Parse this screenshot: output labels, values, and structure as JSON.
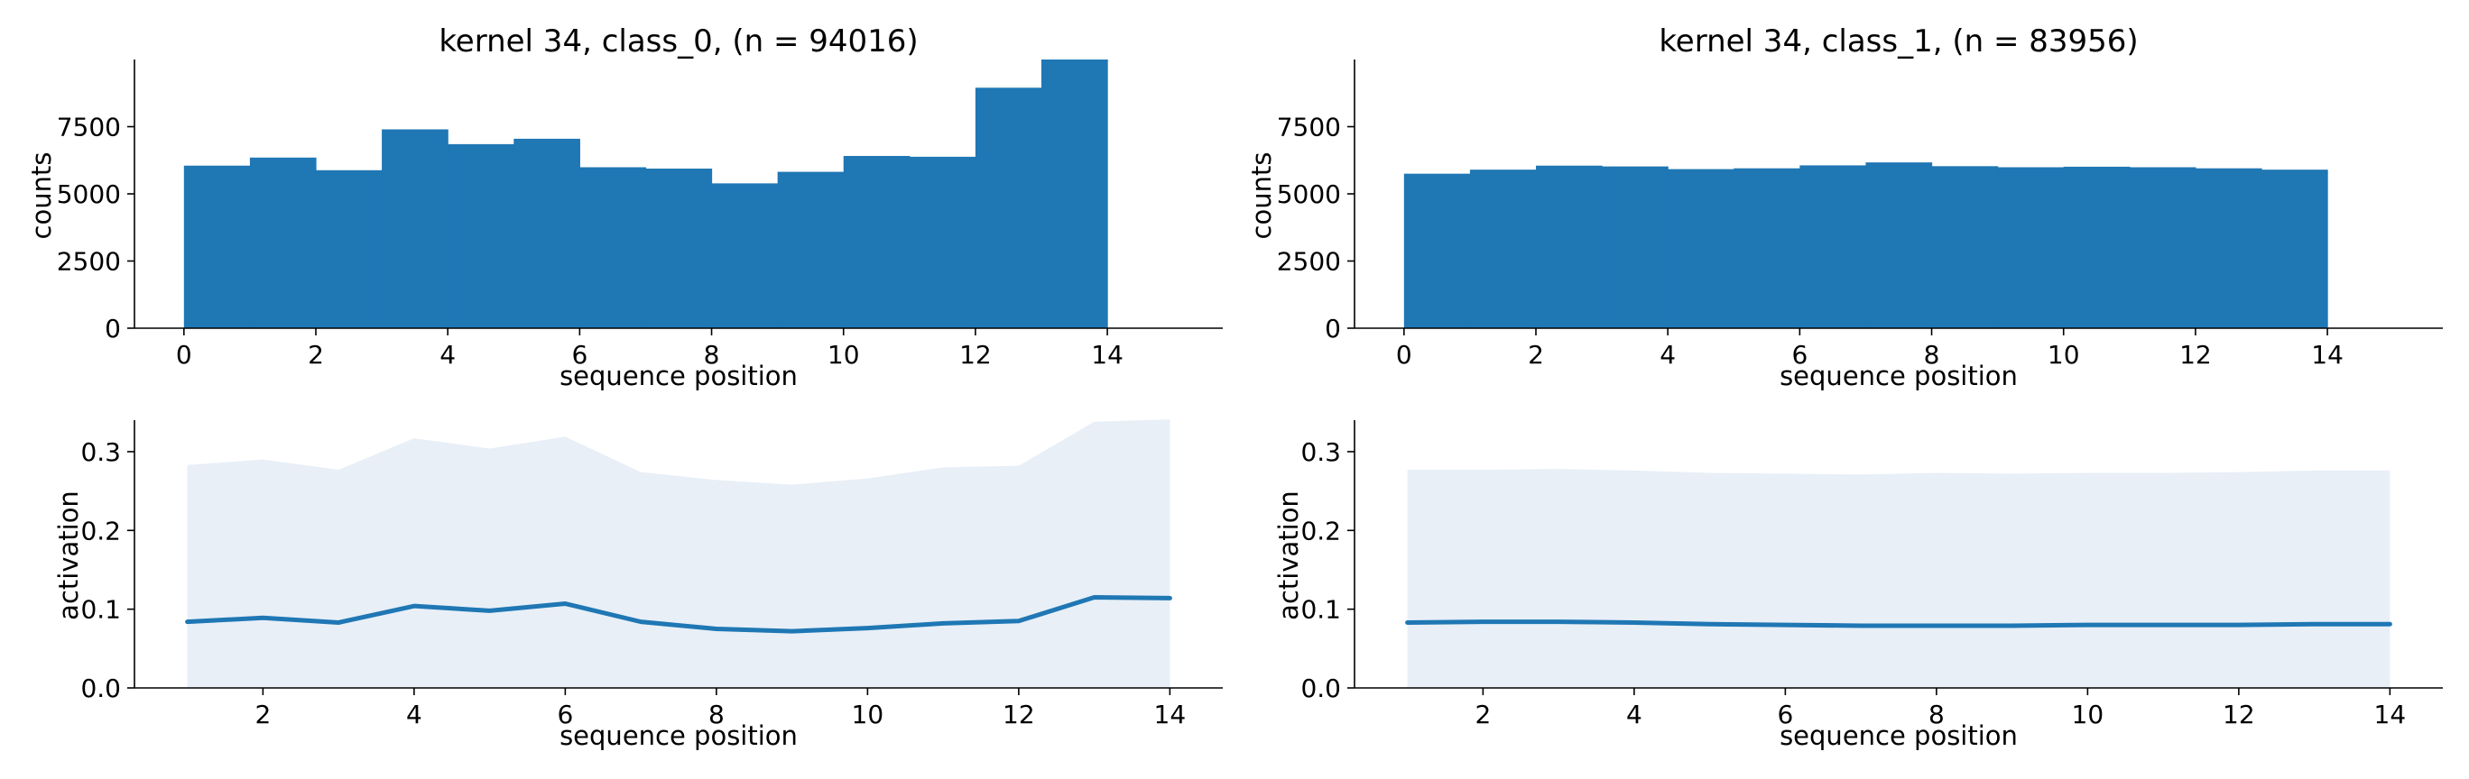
{
  "figure": {
    "colors": {
      "bar": "#1f77b4",
      "line": "#1f77b4",
      "band": "#e8eff7",
      "axis": "#000000"
    }
  },
  "chart_data": [
    {
      "id": "hist-class0",
      "type": "bar",
      "title": "kernel 34, class_0, (n = 94016)",
      "xlabel": "sequence position",
      "ylabel": "counts",
      "xlim": [
        -0.75,
        15.75
      ],
      "ylim": [
        0,
        10000
      ],
      "x_ticks": [
        0,
        2,
        4,
        6,
        8,
        10,
        12,
        14
      ],
      "y_ticks": [
        0,
        2500,
        5000,
        7500
      ],
      "bin_edges": [
        0,
        1,
        2,
        3,
        4,
        5,
        6,
        7,
        8,
        9,
        10,
        11,
        12,
        13,
        14
      ],
      "values": [
        6050,
        6350,
        5880,
        7400,
        6850,
        7050,
        5990,
        5940,
        5390,
        5820,
        6410,
        6380,
        8950,
        10000
      ],
      "grid": false
    },
    {
      "id": "hist-class1",
      "type": "bar",
      "title": "kernel 34, class_1, (n = 83956)",
      "xlabel": "sequence position",
      "ylabel": "counts",
      "xlim": [
        -0.75,
        15.75
      ],
      "ylim": [
        0,
        10000
      ],
      "x_ticks": [
        0,
        2,
        4,
        6,
        8,
        10,
        12,
        14
      ],
      "y_ticks": [
        0,
        2500,
        5000,
        7500
      ],
      "bin_edges": [
        0,
        1,
        2,
        3,
        4,
        5,
        6,
        7,
        8,
        9,
        10,
        11,
        12,
        13,
        14
      ],
      "values": [
        5750,
        5900,
        6050,
        6020,
        5920,
        5950,
        6060,
        6170,
        6030,
        5990,
        6010,
        5990,
        5950,
        5900
      ],
      "grid": false
    },
    {
      "id": "act-class0",
      "type": "line",
      "title": "",
      "xlabel": "sequence position",
      "ylabel": "activation",
      "xlim": [
        0.3,
        14.7
      ],
      "ylim": [
        0,
        0.34
      ],
      "x_ticks": [
        2,
        4,
        6,
        8,
        10,
        12,
        14
      ],
      "y_ticks": [
        0.0,
        0.1,
        0.2,
        0.3
      ],
      "x": [
        1,
        2,
        3,
        4,
        5,
        6,
        7,
        8,
        9,
        10,
        11,
        12,
        13,
        14
      ],
      "series": [
        {
          "values": [
            0.084,
            0.089,
            0.083,
            0.104,
            0.098,
            0.107,
            0.084,
            0.075,
            0.072,
            0.076,
            0.082,
            0.085,
            0.115,
            0.114
          ]
        }
      ],
      "band_upper": [
        0.283,
        0.29,
        0.277,
        0.317,
        0.304,
        0.319,
        0.274,
        0.264,
        0.258,
        0.266,
        0.28,
        0.282,
        0.338,
        0.341
      ],
      "grid": false
    },
    {
      "id": "act-class1",
      "type": "line",
      "title": "",
      "xlabel": "sequence position",
      "ylabel": "activation",
      "xlim": [
        0.3,
        14.7
      ],
      "ylim": [
        0,
        0.34
      ],
      "x_ticks": [
        2,
        4,
        6,
        8,
        10,
        12,
        14
      ],
      "y_ticks": [
        0.0,
        0.1,
        0.2,
        0.3
      ],
      "x": [
        1,
        2,
        3,
        4,
        5,
        6,
        7,
        8,
        9,
        10,
        11,
        12,
        13,
        14
      ],
      "series": [
        {
          "values": [
            0.083,
            0.084,
            0.084,
            0.083,
            0.081,
            0.08,
            0.079,
            0.079,
            0.079,
            0.08,
            0.08,
            0.08,
            0.081,
            0.081
          ]
        }
      ],
      "band_upper": [
        0.277,
        0.277,
        0.278,
        0.276,
        0.273,
        0.272,
        0.271,
        0.273,
        0.272,
        0.273,
        0.273,
        0.274,
        0.276,
        0.276
      ],
      "grid": false
    }
  ]
}
